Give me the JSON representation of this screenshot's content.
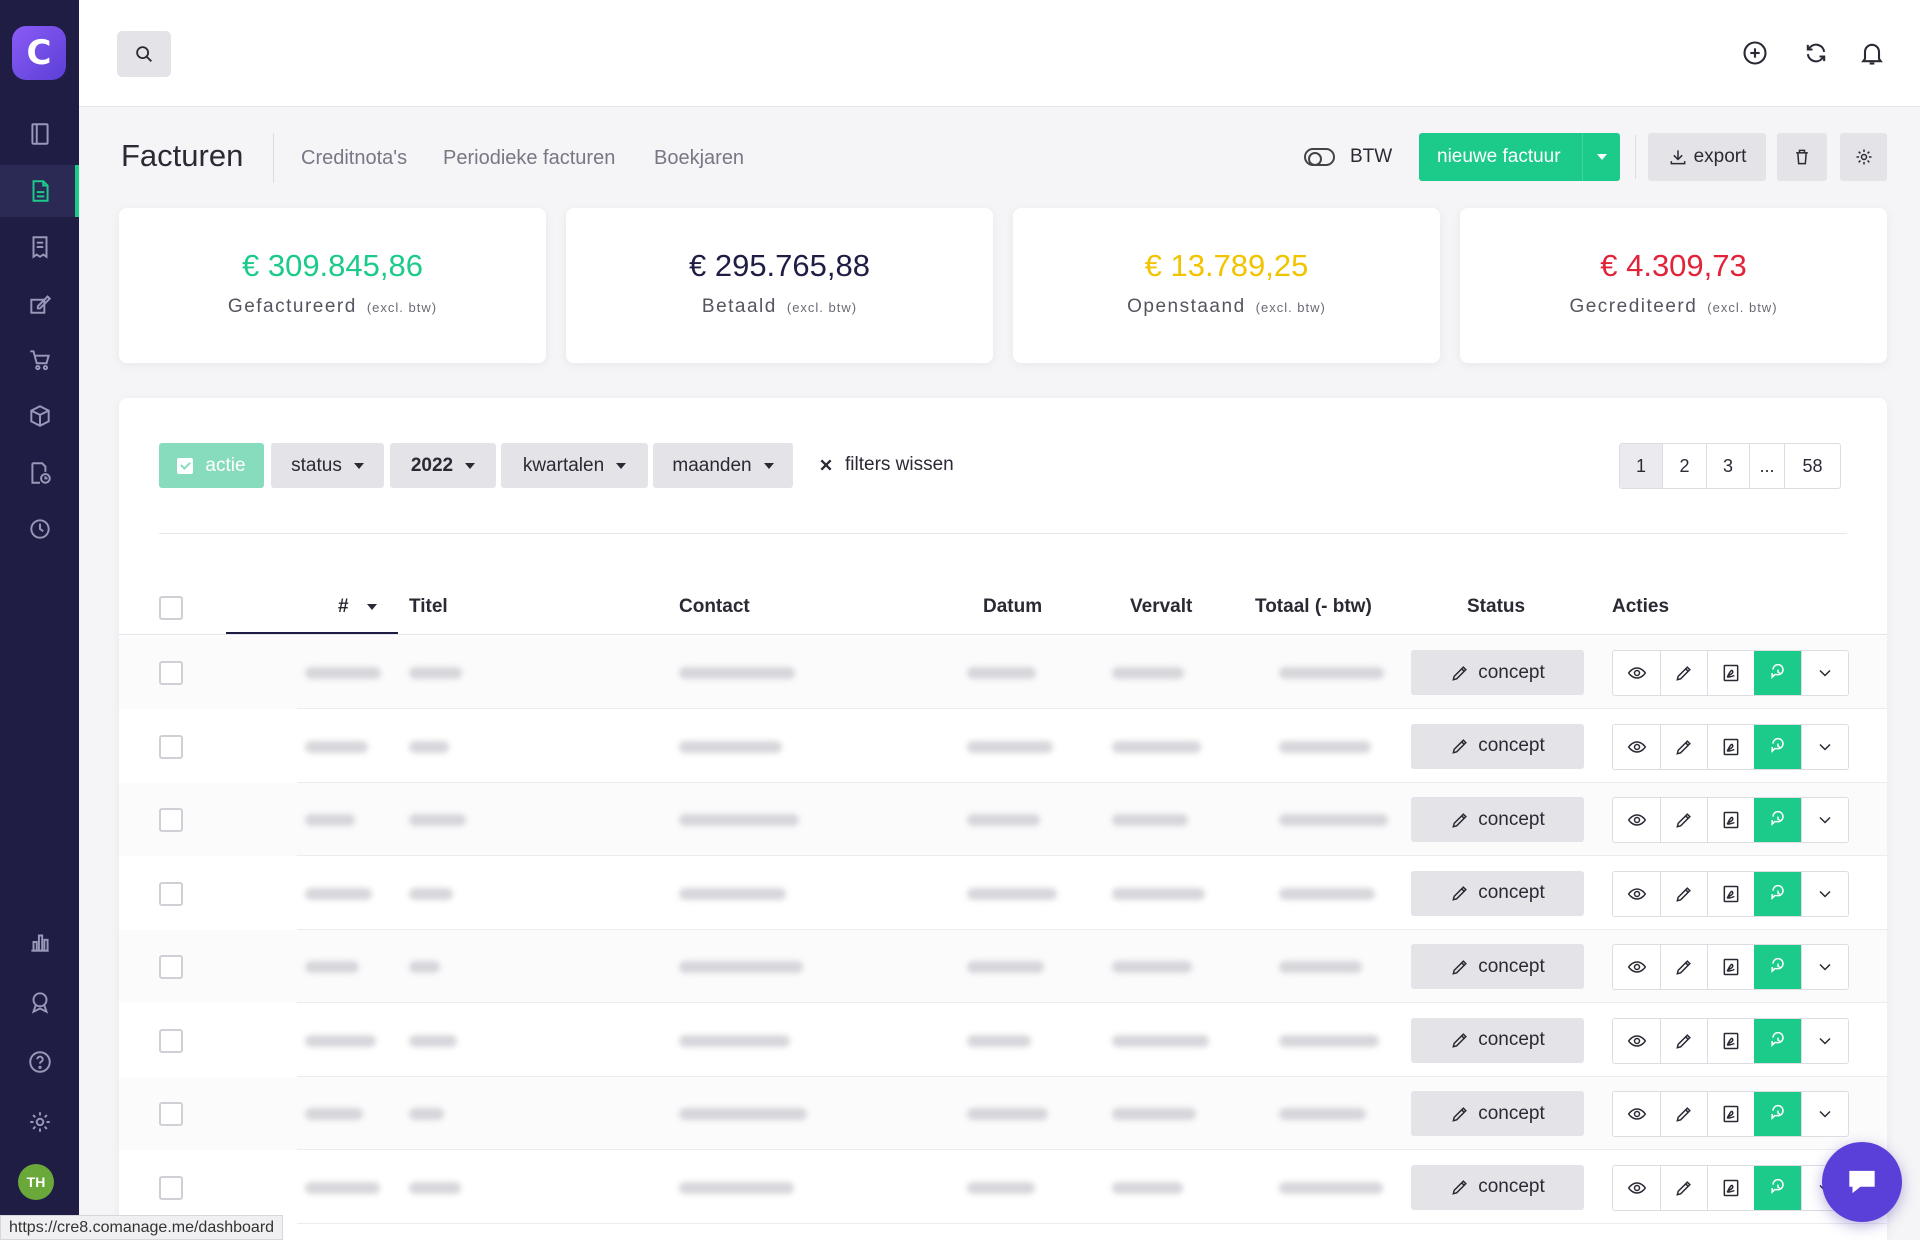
{
  "colors": {
    "sidebar": "#1f1d44",
    "accent_green": "#1ccb8a",
    "invoiced": "#1ccb8a",
    "paid": "#1f1d44",
    "outstanding": "#f2c400",
    "credited": "#e0243a",
    "chat": "#5a3fd9"
  },
  "sidebar": {
    "logo": "C",
    "items": [
      {
        "icon": "book-icon"
      },
      {
        "icon": "invoice-icon",
        "active": true
      },
      {
        "icon": "receipt-icon"
      },
      {
        "icon": "edit-icon"
      },
      {
        "icon": "cart-icon"
      },
      {
        "icon": "box-icon"
      },
      {
        "icon": "time-file-icon"
      },
      {
        "icon": "clock-icon"
      },
      {
        "icon": "chart-icon"
      },
      {
        "icon": "badge-icon"
      },
      {
        "icon": "help-icon"
      },
      {
        "icon": "settings-icon"
      }
    ],
    "avatar": "TH"
  },
  "header": {
    "title": "Facturen",
    "tabs": [
      "Creditnota's",
      "Periodieke facturen",
      "Boekjaren"
    ],
    "btw_label": "BTW",
    "new_invoice": "nieuwe factuur",
    "export": "export"
  },
  "summary": [
    {
      "amount": "€ 309.845,86",
      "label": "Gefactureerd",
      "note": "(excl. btw)"
    },
    {
      "amount": "€ 295.765,88",
      "label": "Betaald",
      "note": "(excl. btw)"
    },
    {
      "amount": "€ 13.789,25",
      "label": "Openstaand",
      "note": "(excl. btw)"
    },
    {
      "amount": "€ 4.309,73",
      "label": "Gecrediteerd",
      "note": "(excl. btw)"
    }
  ],
  "filters": {
    "actie": "actie",
    "status": "status",
    "year": "2022",
    "quarters": "kwartalen",
    "months": "maanden",
    "clear": "filters wissen"
  },
  "pagination": [
    "1",
    "2",
    "3",
    "...",
    "58"
  ],
  "table": {
    "columns": [
      "#",
      "Titel",
      "Contact",
      "Datum",
      "Vervalt",
      "Totaal (- btw)",
      "Status",
      "Acties"
    ],
    "rows": [
      {
        "status": "concept"
      },
      {
        "status": "concept"
      },
      {
        "status": "concept"
      },
      {
        "status": "concept"
      },
      {
        "status": "concept"
      },
      {
        "status": "concept"
      },
      {
        "status": "concept"
      },
      {
        "status": "concept"
      }
    ]
  },
  "status_url": "https://cre8.comanage.me/dashboard"
}
